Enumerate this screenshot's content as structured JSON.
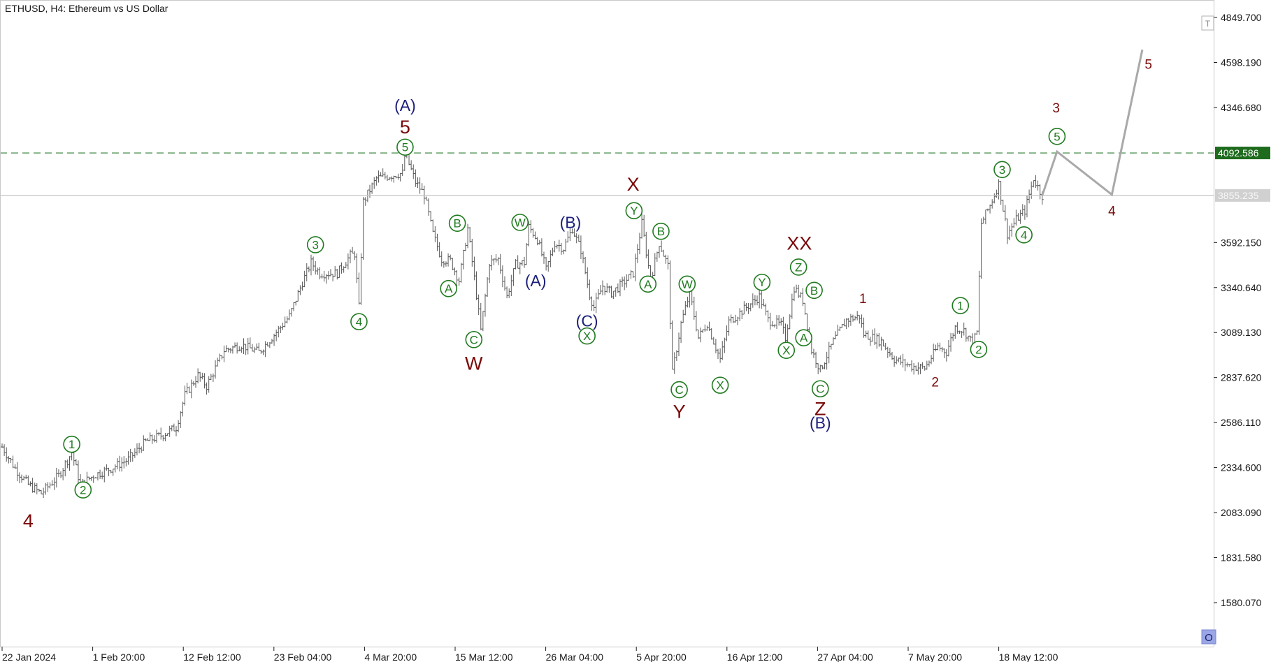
{
  "window": {
    "title": "ETHUSD, H4:  Ethereum vs US Dollar"
  },
  "colors": {
    "price_bars": "#5a5a5a",
    "axis": "#1a1a1a",
    "grid_border": "#c8c8c8",
    "wave_dark_red": "#7a0a0a",
    "wave_navy": "#1b1f7a",
    "wave_green": "#1f7a1f",
    "target_line": "#2e7d32",
    "current_line": "#c4c4c4",
    "projection": "#a9a9a9",
    "badge_target_bg": "#1e6b1e",
    "badge_current_bg": "#d0d0d0"
  },
  "chart_data": {
    "type": "line",
    "title": "ETHUSD, H4:  Ethereum vs US Dollar",
    "symbol": "ETHUSD",
    "timeframe": "H4",
    "y_axis": {
      "ticks": [
        1580.07,
        1831.58,
        2083.09,
        2334.6,
        2586.11,
        2837.62,
        3089.13,
        3340.64,
        3592.15,
        3855.235,
        4092.586,
        4346.68,
        4598.19,
        4849.7
      ],
      "tick_labels": [
        "1580.070",
        "1831.580",
        "2083.090",
        "2334.600",
        "2586.110",
        "2837.620",
        "3089.130",
        "3340.640",
        "3592.150",
        "4346.680",
        "4598.190",
        "4849.700"
      ]
    },
    "x_axis": {
      "tick_labels": [
        "22 Jan 2024",
        "1 Feb 20:00",
        "12 Feb 12:00",
        "23 Feb 04:00",
        "4 Mar 20:00",
        "15 Mar 12:00",
        "26 Mar 04:00",
        "5 Apr 20:00",
        "16 Apr 12:00",
        "27 Apr 04:00",
        "7 May 20:00",
        "18 May 12:00"
      ]
    },
    "horizontal_lines": [
      {
        "label": "4092.586",
        "value": 4092.586,
        "style": "dashed",
        "color": "#2e7d32"
      },
      {
        "label": "3855.235",
        "value": 3855.235,
        "style": "solid",
        "color": "#c4c4c4"
      }
    ],
    "price_path": [
      {
        "x": 0,
        "y": 2450
      },
      {
        "x": 1.5,
        "y": 2330
      },
      {
        "x": 3,
        "y": 2240
      },
      {
        "x": 4.5,
        "y": 2190
      },
      {
        "x": 6.5,
        "y": 2290
      },
      {
        "x": 8,
        "y": 2420
      },
      {
        "x": 9,
        "y": 2240
      },
      {
        "x": 10.5,
        "y": 2290
      },
      {
        "x": 12.5,
        "y": 2330
      },
      {
        "x": 14.5,
        "y": 2380
      },
      {
        "x": 16.5,
        "y": 2480
      },
      {
        "x": 18.5,
        "y": 2520
      },
      {
        "x": 20,
        "y": 2560
      },
      {
        "x": 21,
        "y": 2740
      },
      {
        "x": 22.5,
        "y": 2850
      },
      {
        "x": 23.5,
        "y": 2790
      },
      {
        "x": 25.5,
        "y": 2990
      },
      {
        "x": 27.5,
        "y": 3020
      },
      {
        "x": 29.5,
        "y": 2980
      },
      {
        "x": 31.5,
        "y": 3090
      },
      {
        "x": 33,
        "y": 3180
      },
      {
        "x": 34.5,
        "y": 3370
      },
      {
        "x": 35.5,
        "y": 3480
      },
      {
        "x": 36.5,
        "y": 3420
      },
      {
        "x": 38.5,
        "y": 3420
      },
      {
        "x": 40,
        "y": 3520
      },
      {
        "x": 40.5,
        "y": 3530
      },
      {
        "x": 41,
        "y": 3230
      },
      {
        "x": 41.5,
        "y": 3820
      },
      {
        "x": 43,
        "y": 3950
      },
      {
        "x": 45,
        "y": 3970
      },
      {
        "x": 46,
        "y": 3980
      },
      {
        "x": 46.3,
        "y": 4090
      },
      {
        "x": 47.5,
        "y": 3930
      },
      {
        "x": 48.5,
        "y": 3860
      },
      {
        "x": 49.5,
        "y": 3640
      },
      {
        "x": 50.5,
        "y": 3500
      },
      {
        "x": 51.5,
        "y": 3490
      },
      {
        "x": 52.5,
        "y": 3380
      },
      {
        "x": 53.5,
        "y": 3670
      },
      {
        "x": 54.5,
        "y": 3300
      },
      {
        "x": 55,
        "y": 3100
      },
      {
        "x": 56,
        "y": 3480
      },
      {
        "x": 57,
        "y": 3500
      },
      {
        "x": 58,
        "y": 3290
      },
      {
        "x": 59,
        "y": 3470
      },
      {
        "x": 60,
        "y": 3480
      },
      {
        "x": 60.5,
        "y": 3680
      },
      {
        "x": 61.5,
        "y": 3610
      },
      {
        "x": 62.5,
        "y": 3440
      },
      {
        "x": 63.5,
        "y": 3590
      },
      {
        "x": 64.5,
        "y": 3560
      },
      {
        "x": 65.5,
        "y": 3670
      },
      {
        "x": 66.5,
        "y": 3550
      },
      {
        "x": 67.5,
        "y": 3300
      },
      {
        "x": 68,
        "y": 3230
      },
      {
        "x": 69,
        "y": 3350
      },
      {
        "x": 70,
        "y": 3310
      },
      {
        "x": 71,
        "y": 3350
      },
      {
        "x": 72.5,
        "y": 3420
      },
      {
        "x": 73.5,
        "y": 3700
      },
      {
        "x": 74.5,
        "y": 3380
      },
      {
        "x": 75.5,
        "y": 3590
      },
      {
        "x": 76.5,
        "y": 3460
      },
      {
        "x": 77,
        "y": 2860
      },
      {
        "x": 78,
        "y": 3140
      },
      {
        "x": 79,
        "y": 3310
      },
      {
        "x": 80,
        "y": 3060
      },
      {
        "x": 81,
        "y": 3140
      },
      {
        "x": 82.5,
        "y": 2940
      },
      {
        "x": 83.5,
        "y": 3150
      },
      {
        "x": 85.5,
        "y": 3230
      },
      {
        "x": 87,
        "y": 3290
      },
      {
        "x": 88,
        "y": 3160
      },
      {
        "x": 89.5,
        "y": 3130
      },
      {
        "x": 90,
        "y": 3060
      },
      {
        "x": 91,
        "y": 3340
      },
      {
        "x": 92,
        "y": 3270
      },
      {
        "x": 93,
        "y": 2990
      },
      {
        "x": 94,
        "y": 2880
      },
      {
        "x": 95.5,
        "y": 3040
      },
      {
        "x": 97,
        "y": 3160
      },
      {
        "x": 98.5,
        "y": 3180
      },
      {
        "x": 99,
        "y": 3080
      },
      {
        "x": 101,
        "y": 3040
      },
      {
        "x": 102.5,
        "y": 2940
      },
      {
        "x": 104.5,
        "y": 2900
      },
      {
        "x": 106,
        "y": 2890
      },
      {
        "x": 107.5,
        "y": 3010
      },
      {
        "x": 108.5,
        "y": 2980
      },
      {
        "x": 109.5,
        "y": 3120
      },
      {
        "x": 110.5,
        "y": 3100
      },
      {
        "x": 111.5,
        "y": 3030
      },
      {
        "x": 112,
        "y": 3090
      },
      {
        "x": 112.5,
        "y": 3700
      },
      {
        "x": 113.5,
        "y": 3800
      },
      {
        "x": 114.5,
        "y": 3920
      },
      {
        "x": 115.5,
        "y": 3640
      },
      {
        "x": 116.5,
        "y": 3720
      },
      {
        "x": 117.5,
        "y": 3770
      },
      {
        "x": 118.5,
        "y": 3950
      },
      {
        "x": 119.5,
        "y": 3855
      }
    ],
    "projection_path": [
      {
        "x": 119.5,
        "y": 3855
      },
      {
        "x": 121.2,
        "y": 4100
      },
      {
        "x": 127.5,
        "y": 3860
      },
      {
        "x": 131,
        "y": 4670
      }
    ],
    "wave_labels": [
      {
        "text": "4",
        "x": 3,
        "y": 2040,
        "color": "dark_red",
        "style": "plain",
        "size": "big"
      },
      {
        "text": "1",
        "x": 8,
        "y": 2465,
        "color": "green",
        "style": "circle",
        "size": "normal"
      },
      {
        "text": "2",
        "x": 9.3,
        "y": 2210,
        "color": "green",
        "style": "circle",
        "size": "normal"
      },
      {
        "text": "3",
        "x": 36,
        "y": 3580,
        "color": "green",
        "style": "circle",
        "size": "normal"
      },
      {
        "text": "4",
        "x": 41,
        "y": 3150,
        "color": "green",
        "style": "circle",
        "size": "normal"
      },
      {
        "text": "5",
        "x": 46.3,
        "y": 4125,
        "color": "green",
        "style": "circle",
        "size": "normal"
      },
      {
        "text": "5",
        "x": 46.3,
        "y": 4240,
        "color": "dark_red",
        "style": "plain",
        "size": "big"
      },
      {
        "text": "(A)",
        "x": 46.3,
        "y": 4360,
        "color": "navy",
        "style": "plain",
        "size": "normal"
      },
      {
        "text": "B",
        "x": 52.3,
        "y": 3700,
        "color": "green",
        "style": "circle",
        "size": "normal"
      },
      {
        "text": "A",
        "x": 51.3,
        "y": 3335,
        "color": "green",
        "style": "circle",
        "size": "normal"
      },
      {
        "text": "C",
        "x": 54.2,
        "y": 3050,
        "color": "green",
        "style": "circle",
        "size": "normal"
      },
      {
        "text": "W",
        "x": 54.2,
        "y": 2920,
        "color": "dark_red",
        "style": "plain",
        "size": "big"
      },
      {
        "text": "W",
        "x": 59.5,
        "y": 3705,
        "color": "green",
        "style": "circle",
        "size": "normal"
      },
      {
        "text": "(A)",
        "x": 61.3,
        "y": 3380,
        "color": "navy",
        "style": "plain",
        "size": "normal"
      },
      {
        "text": "(B)",
        "x": 65.3,
        "y": 3705,
        "color": "navy",
        "style": "plain",
        "size": "normal"
      },
      {
        "text": "(C)",
        "x": 67.2,
        "y": 3155,
        "color": "navy",
        "style": "plain",
        "size": "normal"
      },
      {
        "text": "X",
        "x": 67.2,
        "y": 3070,
        "color": "green",
        "style": "circle",
        "size": "normal"
      },
      {
        "text": "X",
        "x": 72.5,
        "y": 3920,
        "color": "dark_red",
        "style": "plain",
        "size": "big"
      },
      {
        "text": "Y",
        "x": 72.6,
        "y": 3770,
        "color": "green",
        "style": "circle",
        "size": "normal"
      },
      {
        "text": "B",
        "x": 75.7,
        "y": 3655,
        "color": "green",
        "style": "circle",
        "size": "normal"
      },
      {
        "text": "A",
        "x": 74.2,
        "y": 3360,
        "color": "green",
        "style": "circle",
        "size": "normal"
      },
      {
        "text": "W",
        "x": 78.7,
        "y": 3360,
        "color": "green",
        "style": "circle",
        "size": "normal"
      },
      {
        "text": "C",
        "x": 77.8,
        "y": 2770,
        "color": "green",
        "style": "circle",
        "size": "normal"
      },
      {
        "text": "Y",
        "x": 77.8,
        "y": 2650,
        "color": "dark_red",
        "style": "plain",
        "size": "big"
      },
      {
        "text": "X",
        "x": 82.5,
        "y": 2795,
        "color": "green",
        "style": "circle",
        "size": "normal"
      },
      {
        "text": "Y",
        "x": 87.3,
        "y": 3370,
        "color": "green",
        "style": "circle",
        "size": "normal"
      },
      {
        "text": "Z",
        "x": 91.5,
        "y": 3455,
        "color": "green",
        "style": "circle",
        "size": "normal"
      },
      {
        "text": "B",
        "x": 93.3,
        "y": 3325,
        "color": "green",
        "style": "circle",
        "size": "normal"
      },
      {
        "text": "A",
        "x": 92.1,
        "y": 3060,
        "color": "green",
        "style": "circle",
        "size": "normal"
      },
      {
        "text": "X",
        "x": 90.1,
        "y": 2990,
        "color": "green",
        "style": "circle",
        "size": "normal"
      },
      {
        "text": "XX",
        "x": 91.6,
        "y": 3590,
        "color": "dark_red",
        "style": "plain",
        "size": "big"
      },
      {
        "text": "C",
        "x": 94,
        "y": 2775,
        "color": "green",
        "style": "circle",
        "size": "normal"
      },
      {
        "text": "Z",
        "x": 94,
        "y": 2665,
        "color": "dark_red",
        "style": "plain",
        "size": "big"
      },
      {
        "text": "(B)",
        "x": 94,
        "y": 2585,
        "color": "navy",
        "style": "plain",
        "size": "normal"
      },
      {
        "text": "1",
        "x": 98.9,
        "y": 3280,
        "color": "dark_red",
        "style": "plain",
        "size": "small"
      },
      {
        "text": "2",
        "x": 107.2,
        "y": 2815,
        "color": "dark_red",
        "style": "plain",
        "size": "small"
      },
      {
        "text": "1",
        "x": 110.1,
        "y": 3240,
        "color": "green",
        "style": "circle",
        "size": "normal"
      },
      {
        "text": "2",
        "x": 112.2,
        "y": 2995,
        "color": "green",
        "style": "circle",
        "size": "normal"
      },
      {
        "text": "3",
        "x": 114.9,
        "y": 4000,
        "color": "green",
        "style": "circle",
        "size": "normal"
      },
      {
        "text": "4",
        "x": 117.4,
        "y": 3635,
        "color": "green",
        "style": "circle",
        "size": "normal"
      },
      {
        "text": "5",
        "x": 121.2,
        "y": 4185,
        "color": "green",
        "style": "circle",
        "size": "normal"
      },
      {
        "text": "3",
        "x": 121.1,
        "y": 4345,
        "color": "dark_red",
        "style": "plain",
        "size": "small"
      },
      {
        "text": "4",
        "x": 127.5,
        "y": 3770,
        "color": "dark_red",
        "style": "plain",
        "size": "small"
      },
      {
        "text": "5",
        "x": 131.7,
        "y": 4590,
        "color": "dark_red",
        "style": "plain",
        "size": "small"
      }
    ]
  },
  "controls": {
    "top_right_icon": "text-tool-icon",
    "bottom_right_icon": "circle-tool-icon",
    "top_right_glyph": "T",
    "bottom_right_glyph": "O"
  }
}
